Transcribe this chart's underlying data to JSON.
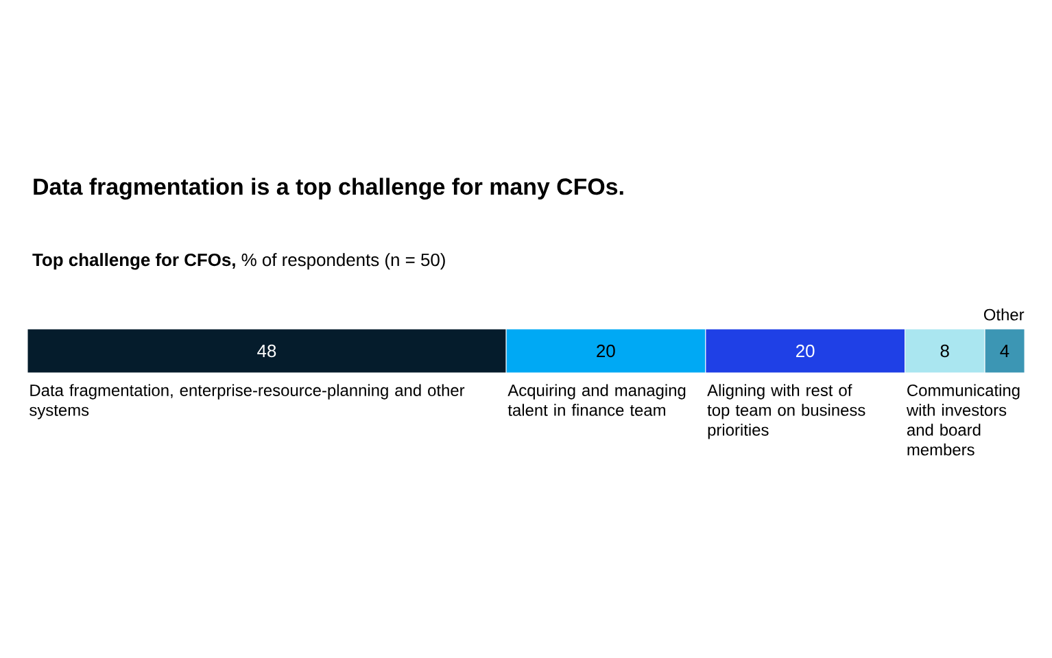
{
  "chart_data": {
    "type": "bar",
    "orientation": "horizontal",
    "stacked": true,
    "title": "Data fragmentation is a top challenge for many CFOs.",
    "subtitle": "**Top challenge for CFOs,** % of respondents (n = 50)",
    "categories": [
      null
    ],
    "legend": false,
    "series": [
      {
        "name": "Data fragmentation, enterprise-resource-planning and other systems",
        "color": "#051c2c",
        "values": [
          48
        ],
        "value_labels": [
          "48"
        ]
      },
      {
        "name": "Acquiring and managing talent in finance team",
        "color": "#00a9f4",
        "values": [
          20
        ],
        "value_labels": [
          "20"
        ]
      },
      {
        "name": "Aligning with rest of top team on business priorities",
        "color": "#1f40e6",
        "values": [
          20
        ],
        "value_labels": [
          "20"
        ]
      },
      {
        "name": "Communicating with investors and board members",
        "color": "#aae6f0",
        "values": [
          8
        ],
        "value_labels": [
          "8"
        ]
      },
      {
        "name": "Other",
        "color": "#3c96b4",
        "values": [
          4
        ],
        "value_labels": [
          "4"
        ]
      }
    ]
  }
}
